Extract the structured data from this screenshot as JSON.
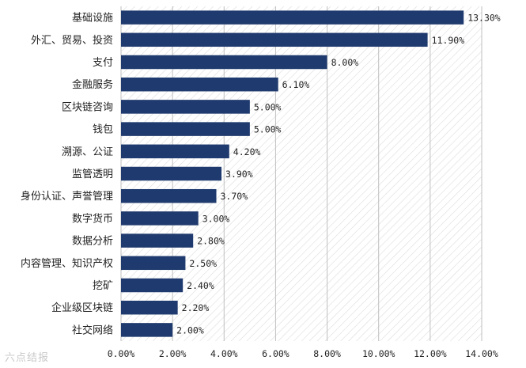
{
  "chart_data": {
    "type": "bar",
    "orientation": "horizontal",
    "categories": [
      "基础设施",
      "外汇、贸易、投资",
      "支付",
      "金融服务",
      "区块链咨询",
      "钱包",
      "溯源、公证",
      "监管透明",
      "身份认证、声誉管理",
      "数字货币",
      "数据分析",
      "内容管理、知识产权",
      "挖矿",
      "企业级区块链",
      "社交网络"
    ],
    "values": [
      13.3,
      11.9,
      8.0,
      6.1,
      5.0,
      5.0,
      4.2,
      3.9,
      3.7,
      3.0,
      2.8,
      2.5,
      2.4,
      2.2,
      2.0
    ],
    "value_labels": [
      "13.30%",
      "11.90%",
      "8.00%",
      "6.10%",
      "5.00%",
      "5.00%",
      "4.20%",
      "3.90%",
      "3.70%",
      "3.00%",
      "2.80%",
      "2.50%",
      "2.40%",
      "2.20%",
      "2.00%"
    ],
    "xlim": [
      0,
      14
    ],
    "xticks": [
      0,
      2,
      4,
      6,
      8,
      10,
      12,
      14
    ],
    "xtick_labels": [
      "0.00%",
      "2.00%",
      "4.00%",
      "6.00%",
      "8.00%",
      "10.00%",
      "12.00%",
      "14.00%"
    ],
    "grid": true,
    "bar_color": "#1f3a6e",
    "background_pattern": "diagonal-hatch",
    "title": "",
    "xlabel": "",
    "ylabel": ""
  },
  "watermark": {
    "text": "六点结报"
  }
}
